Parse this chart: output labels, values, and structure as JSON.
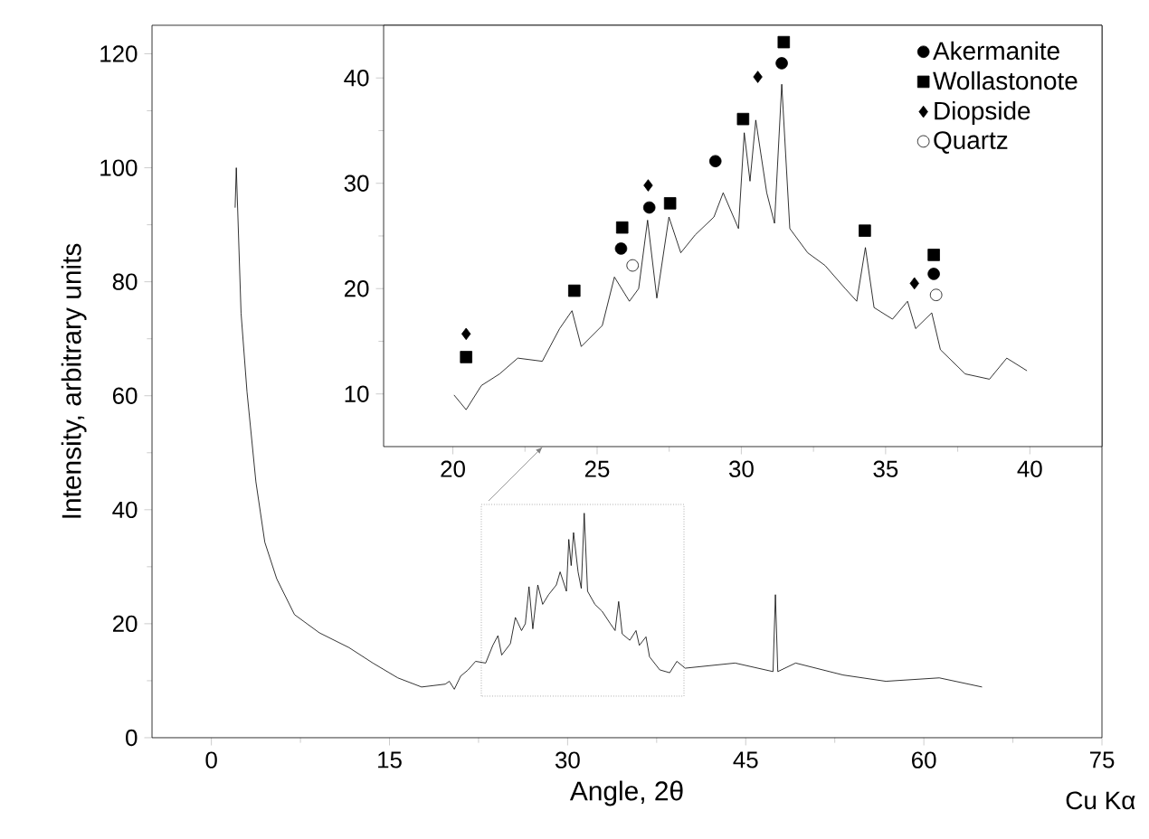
{
  "chart_data": [
    {
      "type": "line",
      "xlabel": "Angle, 2θ",
      "ylabel": "Intensity, arbitrary units",
      "annotations": [
        "Cu Kα"
      ],
      "xlim": [
        -5,
        75
      ],
      "ylim": [
        0,
        125
      ],
      "xticks": [
        0,
        15,
        30,
        45,
        60,
        75
      ],
      "yticks": [
        0,
        20,
        40,
        60,
        80,
        100,
        120
      ],
      "series": [
        {
          "color": "#000000",
          "x": [
            2.0,
            2.1,
            2.5,
            3.0,
            3.75,
            4.5,
            5.5,
            7.0,
            9.1,
            11.6,
            13.6,
            15.7,
            17.7,
            19.7,
            20.04,
            20.46,
            20.99,
            21.62,
            22.25,
            23.1,
            23.7,
            24.13,
            24.45,
            25.18,
            25.6,
            26.12,
            26.44,
            26.75,
            27.07,
            27.49,
            27.9,
            28.4,
            29.05,
            29.37,
            29.9,
            30.1,
            30.3,
            30.5,
            30.88,
            31.15,
            31.4,
            31.68,
            32.3,
            32.9,
            33.6,
            34.0,
            34.3,
            34.6,
            35.24,
            35.76,
            36.04,
            36.6,
            36.9,
            37.76,
            38.6,
            39.2,
            39.9,
            44.1,
            47.3,
            47.5,
            47.7,
            49.2,
            53.2,
            56.8,
            61.3,
            64.9
          ],
          "values": [
            93,
            100,
            74.5,
            60.7,
            44.9,
            34.3,
            27.9,
            21.6,
            18.4,
            15.8,
            13.1,
            10.5,
            8.9,
            9.4,
            9.9,
            8.5,
            10.8,
            11.9,
            13.4,
            13.1,
            16.2,
            17.9,
            14.5,
            16.5,
            21.1,
            18.8,
            20.0,
            26.5,
            19.1,
            26.8,
            23.4,
            25.1,
            26.8,
            29.1,
            25.7,
            34.8,
            30.2,
            36.0,
            29.1,
            26.2,
            39.4,
            25.7,
            23.4,
            22.2,
            20.0,
            18.8,
            23.9,
            18.2,
            17.1,
            18.8,
            16.2,
            17.7,
            14.2,
            11.9,
            11.4,
            13.4,
            12.2,
            13.1,
            11.6,
            25.1,
            11.6,
            13.1,
            11.0,
            9.9,
            10.5,
            8.9
          ]
        }
      ]
    },
    {
      "type": "line",
      "xlim": [
        17.6,
        42.5
      ],
      "ylim": [
        5,
        45
      ],
      "xticks": [
        20,
        25,
        30,
        35,
        40
      ],
      "yticks": [
        10,
        20,
        30,
        40
      ],
      "legend": "top right",
      "series": [
        {
          "color": "#000000",
          "x": [
            20.04,
            20.46,
            20.99,
            21.62,
            22.25,
            23.1,
            23.7,
            24.13,
            24.45,
            25.18,
            25.6,
            26.12,
            26.44,
            26.75,
            27.07,
            27.49,
            27.9,
            28.4,
            29.05,
            29.37,
            29.9,
            30.1,
            30.3,
            30.5,
            30.88,
            31.15,
            31.4,
            31.68,
            32.3,
            32.9,
            33.6,
            34.0,
            34.3,
            34.6,
            35.24,
            35.76,
            36.04,
            36.6,
            36.9,
            37.76,
            38.6,
            39.2,
            39.9
          ],
          "values": [
            9.9,
            8.5,
            10.8,
            11.9,
            13.4,
            13.1,
            16.2,
            17.9,
            14.5,
            16.5,
            21.1,
            18.8,
            20.0,
            26.5,
            19.1,
            26.8,
            23.4,
            25.1,
            26.8,
            29.1,
            25.7,
            34.8,
            30.2,
            36.0,
            29.1,
            26.2,
            39.4,
            25.7,
            23.4,
            22.2,
            20.0,
            18.8,
            23.9,
            18.2,
            17.1,
            18.8,
            16.2,
            17.7,
            14.2,
            11.9,
            11.4,
            13.4,
            12.2
          ]
        },
        {
          "type": "scatter",
          "name": "Akermanite",
          "color": "#000000",
          "marker": "circle",
          "x": [
            25.83,
            26.81,
            29.1,
            31.4,
            36.67
          ],
          "values": [
            23.8,
            27.7,
            32.1,
            41.4,
            21.4
          ]
        },
        {
          "type": "scatter",
          "name": "Wollastonote",
          "color": "#000000",
          "marker": "square",
          "x": [
            20.46,
            24.21,
            25.87,
            27.53,
            30.06,
            31.47,
            34.28,
            36.67
          ],
          "values": [
            13.5,
            19.8,
            25.8,
            28.1,
            36.1,
            43.4,
            25.5,
            23.2
          ]
        },
        {
          "type": "scatter",
          "name": "Diopside",
          "color": "#000000",
          "marker": "diamond",
          "x": [
            20.46,
            26.77,
            30.57,
            36.0
          ],
          "values": [
            15.7,
            29.8,
            40.1,
            20.5
          ]
        },
        {
          "type": "scatter",
          "name": "Quartz",
          "color": "#ffffff",
          "marker": "circle",
          "x": [
            26.23,
            36.75
          ],
          "values": [
            22.2,
            19.4
          ]
        }
      ]
    }
  ]
}
